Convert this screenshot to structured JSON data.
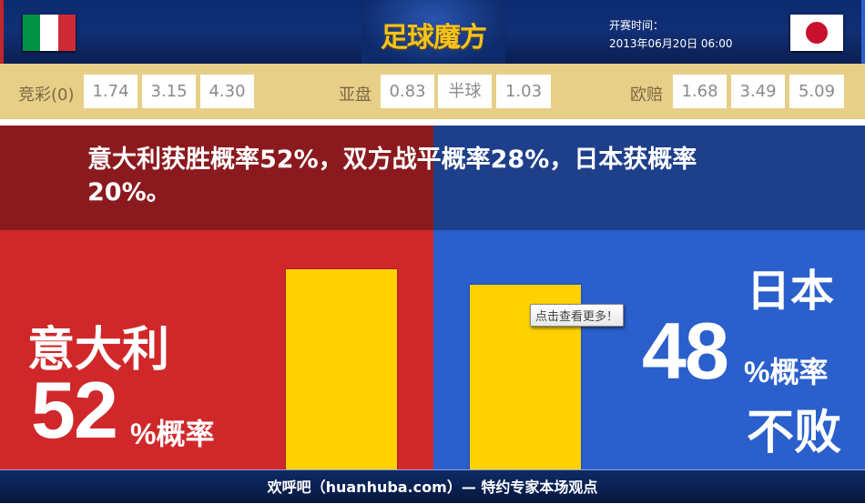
{
  "header": {
    "logo": "足球魔方",
    "kickoff_label": "开赛时间：",
    "kickoff_time": "2013年06月20日 06:00",
    "home_flag": "italy-flag",
    "away_flag": "japan-flag"
  },
  "odds": {
    "jingcai": {
      "label": "竞彩(0)",
      "values": [
        "1.74",
        "3.15",
        "4.30"
      ]
    },
    "asian": {
      "label": "亚盘",
      "values": [
        "0.83",
        "半球",
        "1.03"
      ]
    },
    "european": {
      "label": "欧赔",
      "values": [
        "1.68",
        "3.49",
        "5.09"
      ]
    }
  },
  "headline": "意大利获胜概率52%，双方战平概率28%，日本获概率20%。",
  "home": {
    "name": "意大利",
    "pct": "52",
    "unit": "%概率",
    "bar_value": 52,
    "color": "#d0282a"
  },
  "away": {
    "name": "日本",
    "pct": "48",
    "unit": "%概率",
    "sub": "不败",
    "bar_value": 48,
    "color": "#2a5fcc"
  },
  "tooltip": "点击查看更多！",
  "footer": "欢呼吧（huanhuba.com）— 特约专家本场观点",
  "colors": {
    "bar": "#fdd200",
    "odds_bg": "#e8cf88"
  }
}
